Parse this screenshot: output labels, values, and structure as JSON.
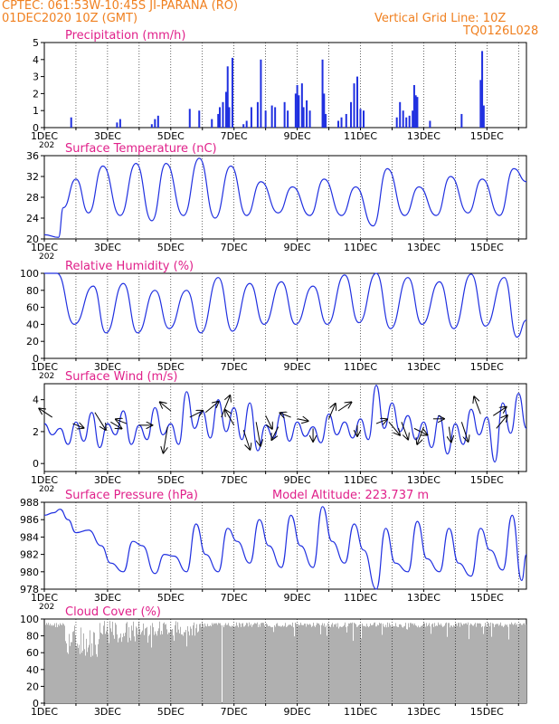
{
  "header": {
    "line1": "CPTEC:   061:53W-10:45S  JI-PARANA (RO)",
    "line2": "01DEC2020 10Z (GMT)",
    "right1": "Vertical Grid Line: 10Z",
    "right2": "TQ0126L028"
  },
  "colors": {
    "header": "#f08020",
    "title": "#e0208a",
    "series": "#2030e0",
    "cloud": "#b0b0b0",
    "arrow": "#000000"
  },
  "x_tick_labels": [
    "1DEC",
    "3DEC",
    "5DEC",
    "7DEC",
    "9DEC",
    "11DEC",
    "13DEC",
    "15DEC"
  ],
  "x_year_fragment": "202",
  "chart_data": [
    {
      "id": "precip",
      "type": "bar",
      "title": "Precipitation (mm/h)",
      "ylim": [
        0,
        5
      ],
      "yticks": [
        0,
        1,
        2,
        3,
        4,
        5
      ],
      "x_range_days": [
        1.0,
        16.25
      ],
      "series": [
        {
          "values": [
            [
              1.85,
              0.6
            ],
            [
              3.3,
              0.3
            ],
            [
              3.4,
              0.5
            ],
            [
              4.4,
              0.2
            ],
            [
              4.5,
              0.5
            ],
            [
              4.6,
              0.7
            ],
            [
              5.6,
              1.1
            ],
            [
              5.9,
              1.0
            ],
            [
              6.3,
              0.5
            ],
            [
              6.5,
              0.8
            ],
            [
              6.55,
              1.2
            ],
            [
              6.65,
              1.5
            ],
            [
              6.75,
              2.1
            ],
            [
              6.8,
              3.6
            ],
            [
              6.85,
              1.2
            ],
            [
              6.95,
              4.1
            ],
            [
              7.3,
              0.2
            ],
            [
              7.4,
              0.4
            ],
            [
              7.55,
              1.2
            ],
            [
              7.75,
              1.5
            ],
            [
              7.85,
              4.0
            ],
            [
              8.0,
              1.0
            ],
            [
              8.2,
              1.3
            ],
            [
              8.3,
              1.2
            ],
            [
              8.6,
              1.5
            ],
            [
              8.7,
              1.0
            ],
            [
              8.95,
              2.0
            ],
            [
              9.0,
              2.5
            ],
            [
              9.05,
              1.9
            ],
            [
              9.15,
              2.6
            ],
            [
              9.2,
              1.2
            ],
            [
              9.3,
              1.6
            ],
            [
              9.4,
              1.0
            ],
            [
              9.8,
              4.0
            ],
            [
              9.85,
              2.0
            ],
            [
              9.9,
              0.8
            ],
            [
              10.3,
              0.4
            ],
            [
              10.4,
              0.6
            ],
            [
              10.55,
              0.8
            ],
            [
              10.7,
              1.5
            ],
            [
              10.8,
              2.6
            ],
            [
              10.9,
              3.0
            ],
            [
              11.0,
              1.1
            ],
            [
              11.1,
              1.0
            ],
            [
              12.15,
              0.6
            ],
            [
              12.25,
              1.5
            ],
            [
              12.35,
              1.0
            ],
            [
              12.45,
              0.6
            ],
            [
              12.55,
              0.7
            ],
            [
              12.65,
              1.0
            ],
            [
              12.7,
              2.5
            ],
            [
              12.75,
              1.9
            ],
            [
              12.8,
              1.8
            ],
            [
              13.2,
              0.4
            ],
            [
              14.2,
              0.8
            ],
            [
              14.8,
              2.8
            ],
            [
              14.85,
              4.5
            ],
            [
              14.9,
              1.3
            ]
          ]
        }
      ]
    },
    {
      "id": "temp",
      "type": "line",
      "title": "Surface Temperature (nC)",
      "ylim": [
        20,
        36
      ],
      "yticks": [
        20,
        24,
        28,
        32,
        36
      ],
      "series": [
        {
          "x": [
            1.0,
            1.45,
            1.6,
            2.0,
            2.4,
            2.85,
            3.4,
            3.9,
            4.4,
            4.85,
            5.4,
            5.9,
            6.4,
            6.9,
            7.4,
            7.85,
            8.4,
            8.85,
            9.4,
            9.85,
            10.4,
            10.85,
            11.4,
            11.85,
            12.4,
            12.85,
            13.4,
            13.85,
            14.4,
            14.85,
            15.4,
            15.85,
            16.25
          ],
          "y": [
            20.8,
            20.3,
            26,
            31.5,
            25,
            34,
            24.5,
            34.5,
            23.5,
            34.5,
            24.5,
            35.5,
            24,
            34,
            24.5,
            31,
            25,
            30,
            24.5,
            31.5,
            24.5,
            30,
            22.5,
            33.5,
            24.5,
            30,
            24.5,
            32,
            25,
            31.5,
            24.5,
            33.5,
            31
          ]
        }
      ]
    },
    {
      "id": "rh",
      "type": "line",
      "title": "Relative Humidity (%)",
      "ylim": [
        0,
        100
      ],
      "yticks": [
        0,
        20,
        40,
        60,
        80,
        100
      ],
      "series": [
        {
          "x": [
            1.0,
            1.4,
            1.95,
            2.55,
            2.95,
            3.5,
            3.95,
            4.5,
            4.95,
            5.5,
            5.95,
            6.5,
            6.95,
            7.5,
            7.95,
            8.5,
            8.95,
            9.5,
            9.95,
            10.5,
            10.95,
            11.5,
            11.95,
            12.5,
            12.95,
            13.5,
            13.95,
            14.5,
            14.95,
            15.55,
            15.95,
            16.25
          ],
          "y": [
            100,
            100,
            40,
            85,
            30,
            88,
            30,
            80,
            35,
            80,
            30,
            95,
            32,
            88,
            40,
            90,
            40,
            85,
            40,
            98,
            42,
            100,
            35,
            95,
            40,
            90,
            35,
            99,
            38,
            95,
            25,
            45
          ]
        }
      ]
    },
    {
      "id": "wind",
      "type": "line",
      "title": "Surface Wind (m/s)",
      "ylim": [
        -0.5,
        5
      ],
      "yticks": [
        0,
        2,
        4
      ],
      "series": [
        {
          "x": [
            1.0,
            1.25,
            1.5,
            1.75,
            2.0,
            2.25,
            2.5,
            2.75,
            3.0,
            3.25,
            3.5,
            3.75,
            4.0,
            4.25,
            4.5,
            4.75,
            5.0,
            5.25,
            5.5,
            5.75,
            6.0,
            6.25,
            6.5,
            6.75,
            7.0,
            7.25,
            7.5,
            7.75,
            8.0,
            8.25,
            8.5,
            8.75,
            9.0,
            9.25,
            9.5,
            9.75,
            10.0,
            10.25,
            10.5,
            10.75,
            11.0,
            11.25,
            11.5,
            11.75,
            12.0,
            12.25,
            12.5,
            12.75,
            13.0,
            13.25,
            13.5,
            13.75,
            14.0,
            14.25,
            14.5,
            14.75,
            15.0,
            15.25,
            15.5,
            15.75,
            16.0,
            16.25
          ],
          "y": [
            2.5,
            1.8,
            2.2,
            1.2,
            2.6,
            1.4,
            3.2,
            1.0,
            2.5,
            1.8,
            3.3,
            1.2,
            2.4,
            1.5,
            3.5,
            1.8,
            2.5,
            1.2,
            4.5,
            2.2,
            3.3,
            1.6,
            4.0,
            2.0,
            3.5,
            1.5,
            3.8,
            0.8,
            2.4,
            1.6,
            3.2,
            1.4,
            2.6,
            1.7,
            2.3,
            1.3,
            3.1,
            1.8,
            2.6,
            1.6,
            2.8,
            1.5,
            4.9,
            2.2,
            3.8,
            2.0,
            3.0,
            1.5,
            2.6,
            1.0,
            3.0,
            0.6,
            2.5,
            1.2,
            3.4,
            1.8,
            2.9,
            0.1,
            3.8,
            1.9,
            4.4,
            2.2
          ]
        }
      ],
      "arrows": [
        {
          "x": 1.25,
          "y": 2.9,
          "u": -0.6,
          "v": 0.4
        },
        {
          "x": 1.9,
          "y": 2.5,
          "u": 0.5,
          "v": -0.2
        },
        {
          "x": 2.6,
          "y": 3.2,
          "u": 0.5,
          "v": -0.8
        },
        {
          "x": 3.1,
          "y": 2.6,
          "u": 0.5,
          "v": -0.3
        },
        {
          "x": 3.6,
          "y": 2.5,
          "u": -0.5,
          "v": 0.2
        },
        {
          "x": 4.0,
          "y": 2.4,
          "u": 0.6,
          "v": 0.0
        },
        {
          "x": 4.9,
          "y": 2.3,
          "u": -0.2,
          "v": -1.2
        },
        {
          "x": 5.0,
          "y": 3.3,
          "u": -0.5,
          "v": 0.4
        },
        {
          "x": 5.6,
          "y": 2.9,
          "u": 0.6,
          "v": 0.3
        },
        {
          "x": 6.1,
          "y": 3.2,
          "u": 0.6,
          "v": 0.5
        },
        {
          "x": 6.6,
          "y": 2.9,
          "u": 0.4,
          "v": 1.0
        },
        {
          "x": 7.0,
          "y": 2.4,
          "u": -0.4,
          "v": 0.7
        },
        {
          "x": 7.3,
          "y": 2.1,
          "u": 0.3,
          "v": -0.9
        },
        {
          "x": 7.7,
          "y": 2.6,
          "u": 0.2,
          "v": -1.1
        },
        {
          "x": 8.0,
          "y": 3.0,
          "u": 0.3,
          "v": -0.6
        },
        {
          "x": 8.4,
          "y": 2.3,
          "u": -0.3,
          "v": -0.6
        },
        {
          "x": 8.8,
          "y": 2.9,
          "u": -0.5,
          "v": 0.2
        },
        {
          "x": 9.0,
          "y": 2.8,
          "u": 0.5,
          "v": -0.1
        },
        {
          "x": 9.5,
          "y": 2.2,
          "u": 0.0,
          "v": -0.6
        },
        {
          "x": 10.0,
          "y": 2.8,
          "u": 0.3,
          "v": 0.7
        },
        {
          "x": 10.3,
          "y": 3.3,
          "u": 0.6,
          "v": 0.4
        },
        {
          "x": 10.9,
          "y": 2.4,
          "u": 0.0,
          "v": -0.5
        },
        {
          "x": 11.5,
          "y": 2.5,
          "u": 0.5,
          "v": 0.2
        },
        {
          "x": 11.9,
          "y": 2.6,
          "u": 0.5,
          "v": -0.6
        },
        {
          "x": 12.3,
          "y": 2.6,
          "u": 0.3,
          "v": -0.8
        },
        {
          "x": 12.7,
          "y": 2.2,
          "u": 0.6,
          "v": -0.3
        },
        {
          "x": 13.0,
          "y": 2.3,
          "u": -0.3,
          "v": -0.8
        },
        {
          "x": 13.3,
          "y": 2.8,
          "u": 0.5,
          "v": 0.0
        },
        {
          "x": 13.8,
          "y": 2.3,
          "u": 0.1,
          "v": -0.7
        },
        {
          "x": 14.2,
          "y": 2.6,
          "u": 0.3,
          "v": -0.9
        },
        {
          "x": 14.8,
          "y": 3.1,
          "u": -0.3,
          "v": 0.8
        },
        {
          "x": 15.2,
          "y": 3.0,
          "u": 0.6,
          "v": 0.4
        },
        {
          "x": 15.3,
          "y": 2.2,
          "u": 0.5,
          "v": 0.6
        }
      ]
    },
    {
      "id": "pres",
      "type": "line",
      "title": "Surface Pressure (hPa)",
      "annotation": "Model Altitude: 223.737 m",
      "ylim": [
        978,
        988
      ],
      "yticks": [
        978,
        980,
        982,
        984,
        986,
        988
      ],
      "series": [
        {
          "x": [
            1.0,
            1.3,
            1.5,
            1.75,
            2.0,
            2.4,
            2.8,
            3.1,
            3.5,
            3.8,
            4.1,
            4.5,
            4.8,
            5.1,
            5.5,
            5.8,
            6.1,
            6.5,
            6.8,
            7.1,
            7.5,
            7.8,
            8.1,
            8.5,
            8.8,
            9.1,
            9.5,
            9.8,
            10.1,
            10.5,
            10.8,
            11.1,
            11.5,
            11.8,
            12.1,
            12.5,
            12.8,
            13.1,
            13.5,
            13.8,
            14.1,
            14.5,
            14.8,
            15.1,
            15.5,
            15.8,
            16.1,
            16.25
          ],
          "y": [
            986.5,
            986.8,
            987.2,
            986.0,
            984.5,
            984.8,
            983.0,
            981.0,
            980.0,
            983.5,
            983.0,
            979.8,
            982.0,
            981.8,
            980.0,
            985.5,
            982.0,
            980.0,
            985.0,
            983.5,
            981.0,
            986.0,
            983.0,
            980.5,
            986.5,
            983.0,
            980.5,
            987.5,
            983.5,
            981.0,
            985.5,
            982.5,
            978.0,
            985.0,
            981.0,
            980.0,
            985.8,
            981.5,
            980.0,
            985.0,
            981.0,
            979.5,
            985.0,
            982.5,
            980.2,
            986.5,
            979.0,
            982.0
          ]
        }
      ]
    },
    {
      "id": "cloud",
      "type": "bar",
      "title": "Cloud Cover (%)",
      "ylim": [
        0,
        100
      ],
      "yticks": [
        0,
        20,
        40,
        60,
        80,
        100
      ],
      "x_range_days": [
        1.0,
        16.25
      ]
    }
  ]
}
